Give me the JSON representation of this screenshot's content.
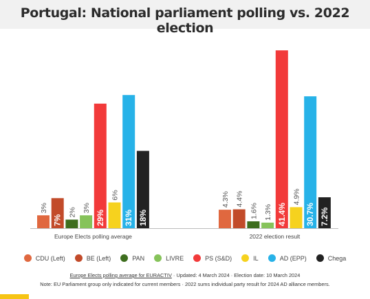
{
  "title": "Portugal: National parliament polling vs. 2022 election",
  "chart_data": {
    "type": "bar",
    "categories": [
      "Europe Elects polling average",
      "2022 election result"
    ],
    "series": [
      {
        "name": "CDU (Left)",
        "color": "#e0683f",
        "values": [
          3,
          4.3
        ],
        "labels": [
          "3%",
          "4.3%"
        ]
      },
      {
        "name": "BE (Left)",
        "color": "#c24b2a",
        "values": [
          7,
          4.4
        ],
        "labels": [
          "7%",
          "4.4%"
        ]
      },
      {
        "name": "PAN",
        "color": "#3e6e1e",
        "values": [
          2,
          1.6
        ],
        "labels": [
          "2%",
          "1.6%"
        ]
      },
      {
        "name": "LIVRE",
        "color": "#86c35a",
        "values": [
          3,
          1.3
        ],
        "labels": [
          "3%",
          "1.3%"
        ]
      },
      {
        "name": "PS (S&D)",
        "color": "#f23a3a",
        "values": [
          29,
          41.4
        ],
        "labels": [
          "29%",
          "41.4%"
        ]
      },
      {
        "name": "IL",
        "color": "#f6d21e",
        "values": [
          6,
          4.9
        ],
        "labels": [
          "6%",
          "4.9%"
        ]
      },
      {
        "name": "AD (EPP)",
        "color": "#27b2e8",
        "values": [
          31,
          30.7
        ],
        "labels": [
          "31%",
          "30.7%"
        ]
      },
      {
        "name": "Chega",
        "color": "#222222",
        "values": [
          18,
          7.2
        ],
        "labels": [
          "18%",
          "7.2%"
        ]
      }
    ],
    "legend_position": "bottom",
    "grid": false
  },
  "footer": {
    "link_text": "Europe Elects polling average for EURACTIV",
    "line1_rest": " · Updated: 4 March 2024 · Election date: 10 March 2024",
    "line2": "Note: EU Parliament group only indicated for current members · 2022 sums individual party result for 2024 AD alliance members."
  }
}
